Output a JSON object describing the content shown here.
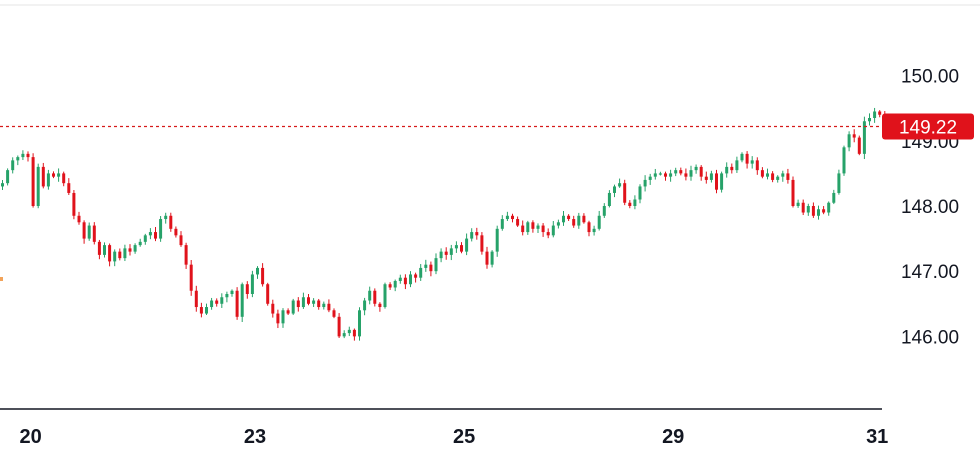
{
  "chart_data": {
    "type": "candlestick",
    "title": "",
    "xlabel": "",
    "ylabel": "",
    "ylim": [
      145.3,
      150.7
    ],
    "y_ticks": [
      "150.00",
      "149.00",
      "148.00",
      "147.00",
      "146.00"
    ],
    "y_tick_values": [
      150,
      149,
      148,
      147,
      146
    ],
    "x_tick_labels": [
      "20",
      "23",
      "25",
      "29",
      "31"
    ],
    "x_tick_index": [
      6,
      50,
      91,
      132,
      172
    ],
    "current_price": "149.22",
    "current_price_value": 149.22,
    "grid": false,
    "colors": {
      "up": "#26a269",
      "down": "#e0121b",
      "price_line": "#d61a1a",
      "price_label_bg": "#e0121b",
      "axis": "#131722"
    },
    "close_path": [
      148.35,
      148.55,
      148.7,
      148.75,
      148.8,
      148.75,
      148.0,
      148.6,
      148.3,
      148.5,
      148.45,
      148.5,
      148.35,
      148.2,
      147.85,
      147.75,
      147.5,
      147.7,
      147.45,
      147.25,
      147.4,
      147.15,
      147.3,
      147.2,
      147.35,
      147.3,
      147.4,
      147.45,
      147.55,
      147.6,
      147.5,
      147.8,
      147.85,
      147.65,
      147.55,
      147.4,
      147.1,
      146.7,
      146.45,
      146.35,
      146.45,
      146.55,
      146.5,
      146.6,
      146.65,
      146.7,
      146.3,
      146.8,
      146.65,
      146.95,
      147.05,
      146.8,
      146.5,
      146.35,
      146.2,
      146.4,
      146.35,
      146.55,
      146.45,
      146.6,
      146.5,
      146.55,
      146.45,
      146.5,
      146.4,
      146.3,
      146.0,
      146.05,
      146.1,
      146.0,
      146.4,
      146.55,
      146.7,
      146.5,
      146.45,
      146.8,
      146.75,
      146.85,
      146.9,
      146.8,
      146.95,
      146.9,
      147.05,
      147.1,
      147.0,
      147.2,
      147.3,
      147.25,
      147.35,
      147.4,
      147.3,
      147.5,
      147.6,
      147.55,
      147.3,
      147.1,
      147.3,
      147.65,
      147.8,
      147.85,
      147.8,
      147.7,
      147.6,
      147.75,
      147.65,
      147.7,
      147.6,
      147.55,
      147.7,
      147.75,
      147.85,
      147.8,
      147.7,
      147.85,
      147.75,
      147.6,
      147.65,
      147.85,
      148.0,
      148.2,
      148.3,
      148.35,
      148.05,
      148.0,
      148.1,
      148.3,
      148.4,
      148.45,
      148.5,
      148.5,
      148.45,
      148.5,
      148.55,
      148.5,
      148.45,
      148.55,
      148.6,
      148.45,
      148.4,
      148.5,
      148.25,
      148.5,
      148.6,
      148.55,
      148.7,
      148.8,
      148.65,
      148.7,
      148.55,
      148.45,
      148.5,
      148.4,
      148.45,
      148.5,
      148.4,
      148.0,
      148.05,
      147.9,
      148.0,
      147.85,
      147.95,
      147.9,
      148.05,
      148.2,
      148.5,
      148.9,
      149.1,
      149.05,
      148.8,
      149.3,
      149.35,
      149.45,
      149.4,
      149.3,
      149.25,
      149.22
    ]
  }
}
